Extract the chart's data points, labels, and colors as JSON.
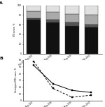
{
  "bar_labels": [
    "Sep 2006-Aug 2007",
    "Sep 2007-Aug 2008",
    "Sep 2008-Aug 2009",
    "Sep 2009-Mar 2010*"
  ],
  "bacteremia": [
    70,
    65,
    58,
    55
  ],
  "lrti": [
    4,
    5,
    6,
    5
  ],
  "meningitis": [
    14,
    16,
    18,
    20
  ],
  "other": [
    12,
    14,
    18,
    20
  ],
  "color_bacteremia": "#111111",
  "color_lrti": "#555555",
  "color_meningitis": "#aaaaaa",
  "color_other": "#e0e0e0",
  "panel_a_ylabel": "IPD cases, %",
  "panel_a_label": "A",
  "panel_b_ylabel": "Serotyped IPD cases, %",
  "panel_b_label": "B",
  "line_labels": [
    "Sep 2006-Aug 2007",
    "Sep 2007-Aug 2008",
    "Sep 2008-Aug 2009",
    "Sep 2009-Mar 2010*"
  ],
  "healthy_values": [
    58,
    18,
    5,
    8
  ],
  "comorbidity_values": [
    52,
    25,
    15,
    12
  ],
  "ylim_b": [
    0,
    60
  ],
  "ylim_a": [
    0,
    100
  ],
  "yticks_a": [
    0,
    20,
    40,
    60,
    80,
    100
  ],
  "yticks_b": [
    0,
    10,
    20,
    30,
    40,
    50,
    60
  ]
}
